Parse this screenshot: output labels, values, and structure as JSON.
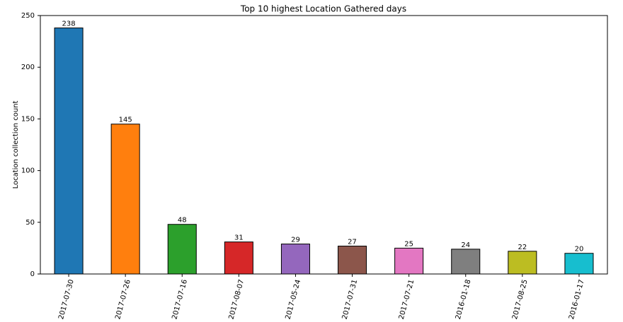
{
  "chart_data": {
    "type": "bar",
    "title": "Top 10 highest Location Gathered days",
    "y_label": "Location collection count",
    "categories": [
      "2017-07-30",
      "2017-07-26",
      "2017-07-16",
      "2017-08-07",
      "2017-05-24",
      "2017-07-31",
      "2017-07-21",
      "2016-01-18",
      "2017-08-25",
      "2016-01-17"
    ],
    "values": [
      238,
      145,
      48,
      31,
      29,
      27,
      25,
      24,
      22,
      20
    ],
    "colors": [
      "#1f77b4",
      "#ff7f0e",
      "#2ca02c",
      "#d62728",
      "#9467bd",
      "#8c564b",
      "#e377c2",
      "#7f7f7f",
      "#bcbd22",
      "#17becf"
    ],
    "ylim": [
      0,
      250
    ],
    "yticks": [
      0,
      50,
      100,
      150,
      200,
      250
    ],
    "grid": false
  }
}
